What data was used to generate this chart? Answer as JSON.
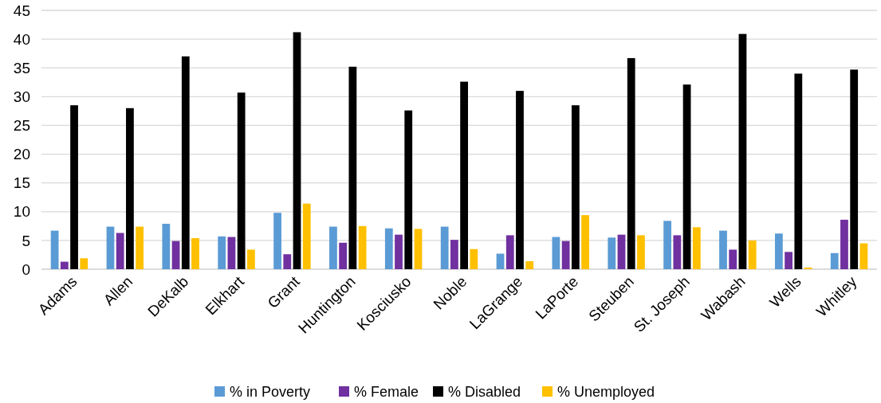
{
  "chart_data": {
    "type": "bar",
    "categories": [
      "Adams",
      "Allen",
      "DeKalb",
      "Elkhart",
      "Grant",
      "Huntington",
      "Kosciusko",
      "Noble",
      "LaGrange",
      "LaPorte",
      "Steuben",
      "St. Joseph",
      "Wabash",
      "Wells",
      "Whitley"
    ],
    "series": [
      {
        "name": "% in Poverty",
        "color": "#5b9bd5",
        "values": [
          6.7,
          7.4,
          7.9,
          5.7,
          9.8,
          7.4,
          7.1,
          7.4,
          2.7,
          5.6,
          5.5,
          8.4,
          6.7,
          6.2,
          2.8
        ]
      },
      {
        "name": "% Female",
        "color": "#7030a0",
        "values": [
          1.3,
          6.3,
          4.9,
          5.6,
          2.6,
          4.6,
          6.0,
          5.1,
          5.9,
          4.9,
          6.0,
          5.9,
          3.4,
          3.0,
          8.6
        ]
      },
      {
        "name": "% Disabled",
        "color": "#000000",
        "values": [
          28.5,
          28.0,
          37.0,
          30.7,
          41.2,
          35.2,
          27.6,
          32.6,
          31.0,
          28.5,
          36.7,
          32.1,
          40.9,
          34.0,
          34.7
        ]
      },
      {
        "name": "% Unemployed",
        "color": "#ffc000",
        "values": [
          1.9,
          7.4,
          5.4,
          3.4,
          11.4,
          7.5,
          7.0,
          3.5,
          1.4,
          9.4,
          5.9,
          7.3,
          5.0,
          0.3,
          4.5
        ]
      }
    ],
    "ylim": [
      0,
      45
    ],
    "yticks": [
      0,
      5,
      10,
      15,
      20,
      25,
      30,
      35,
      40,
      45
    ],
    "grid": "y",
    "legend": "bottom"
  }
}
